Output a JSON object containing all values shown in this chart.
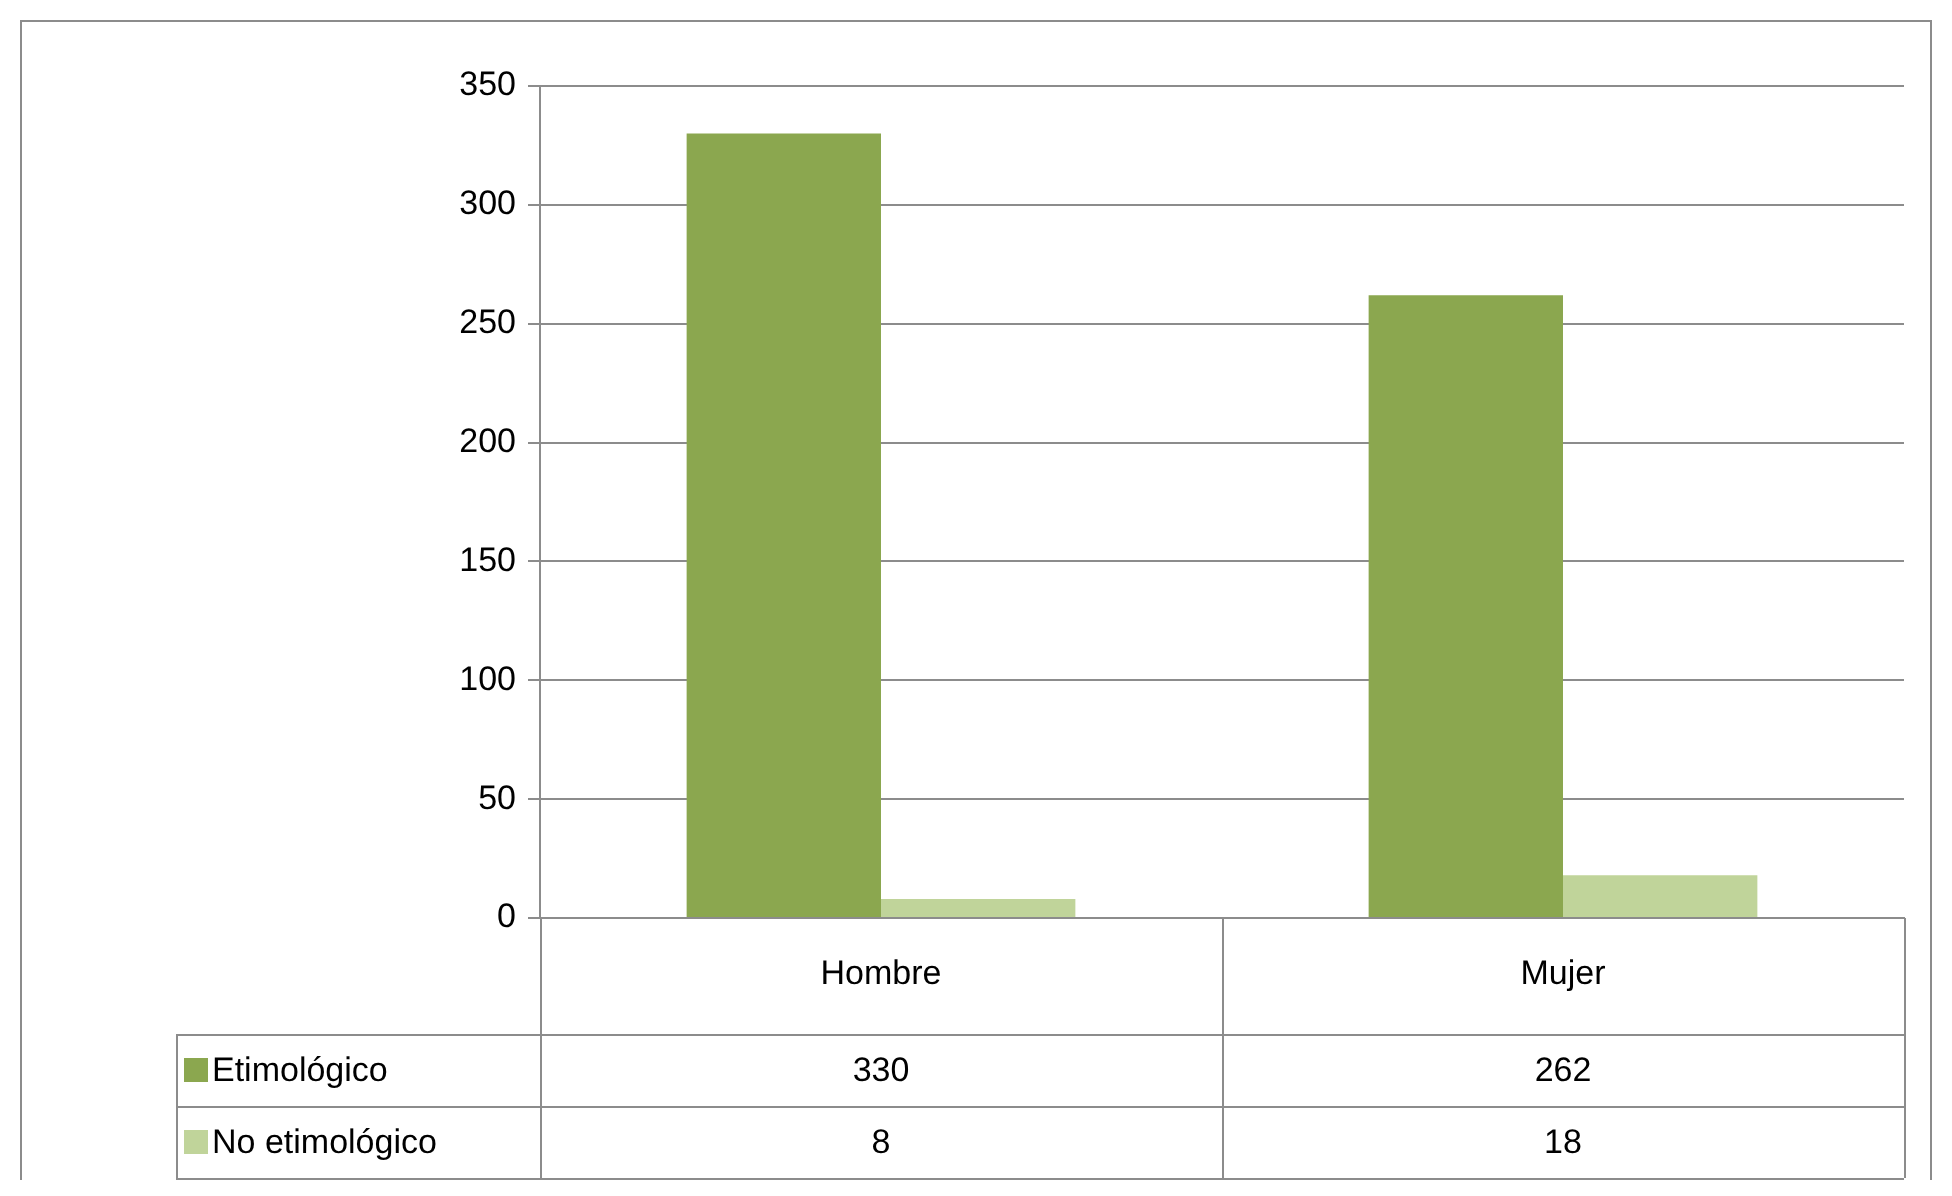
{
  "chart_data": {
    "type": "bar",
    "categories": [
      "Hombre",
      "Mujer"
    ],
    "series": [
      {
        "name": "Etimológico",
        "color": "#8ba74f",
        "values": [
          330,
          262
        ]
      },
      {
        "name": "No etimológico",
        "color": "#c0d49a",
        "values": [
          8,
          18
        ]
      }
    ],
    "ylim": [
      0,
      350
    ],
    "yticks": [
      0,
      50,
      100,
      150,
      200,
      250,
      300,
      350
    ],
    "grid": "y",
    "legend": "bottom",
    "data_labels": true
  }
}
